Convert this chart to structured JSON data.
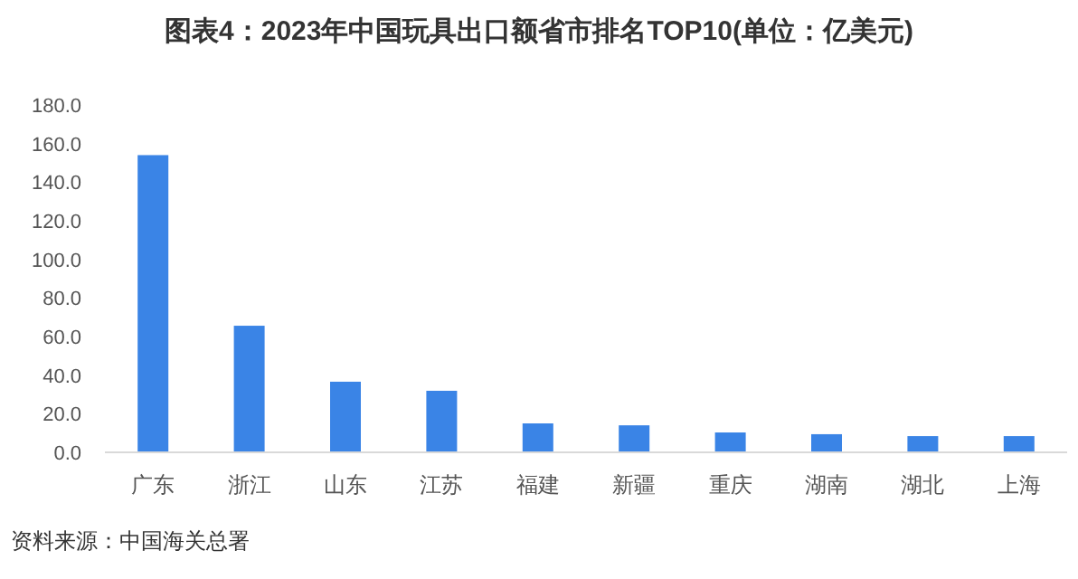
{
  "chart_data": {
    "type": "bar",
    "title": "图表4：2023年中国玩具出口额省市排名TOP10(单位：亿美元)",
    "categories": [
      "广东",
      "浙江",
      "山东",
      "江苏",
      "福建",
      "新疆",
      "重庆",
      "湖南",
      "湖北",
      "上海"
    ],
    "series": [
      {
        "color": "#3a84e6",
        "values": [
          154,
          65.6,
          36.6,
          31.9,
          15,
          14,
          10.3,
          9.4,
          8.4,
          8.4
        ]
      }
    ],
    "ylim": [
      0,
      180
    ],
    "yticks": [
      {
        "value": 0,
        "label": "0.0"
      },
      {
        "value": 20,
        "label": "20.0"
      },
      {
        "value": 40,
        "label": "40.0"
      },
      {
        "value": 60,
        "label": "60.0"
      },
      {
        "value": 80,
        "label": "80.0"
      },
      {
        "value": 100,
        "label": "100.0"
      },
      {
        "value": 120,
        "label": "120.0"
      },
      {
        "value": 140,
        "label": "140.0"
      },
      {
        "value": 160,
        "label": "160.0"
      },
      {
        "value": 180,
        "label": "180.0"
      }
    ],
    "grid": false,
    "annotations": [
      "资料来源：中国海关总署"
    ]
  }
}
